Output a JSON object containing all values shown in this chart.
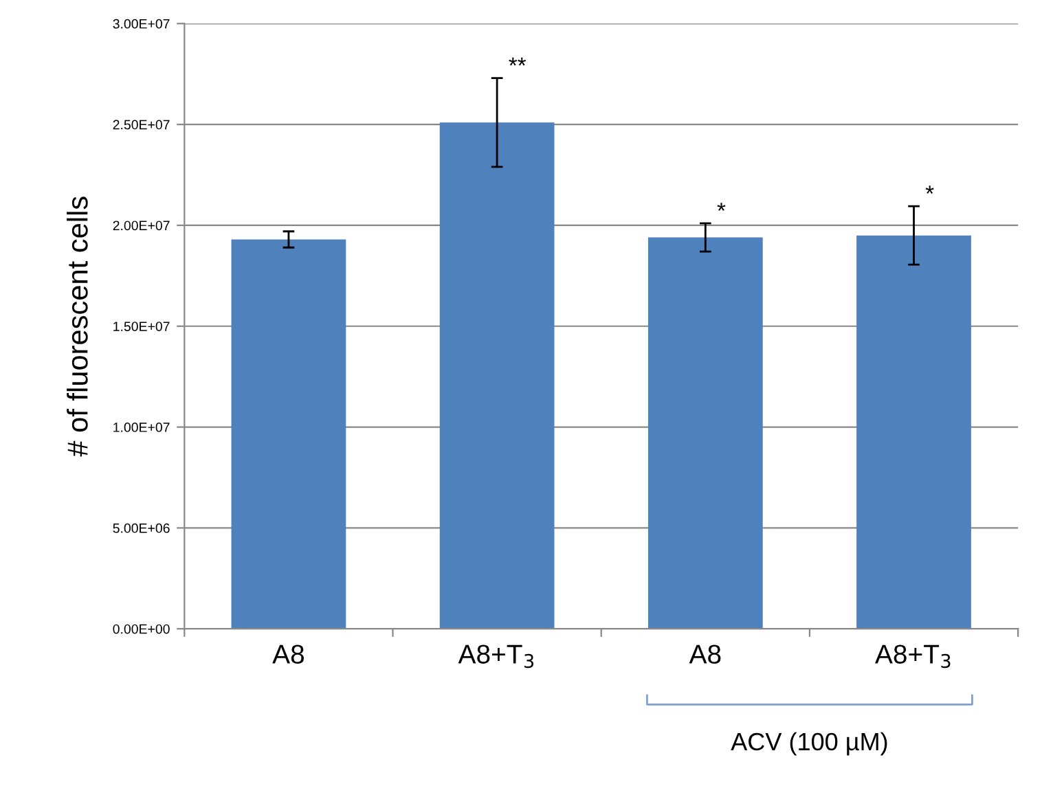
{
  "chart_data": {
    "type": "bar",
    "ylabel": "# of fluorescent cells",
    "categories": [
      "A8",
      "A8+T$_{3}$",
      "A8",
      "A8+T$_{3}$"
    ],
    "values": [
      19300000,
      25100000,
      19400000,
      19500000
    ],
    "errors": [
      400000,
      2200000,
      700000,
      1450000
    ],
    "color": "#4f81bd",
    "ylim": [
      0,
      30000000
    ],
    "yticks": [
      {
        "value": 0,
        "label": "0.00E+00"
      },
      {
        "value": 5000000,
        "label": "5.00E+06"
      },
      {
        "value": 10000000,
        "label": "1.00E+07"
      },
      {
        "value": 15000000,
        "label": "1.50E+07"
      },
      {
        "value": 20000000,
        "label": "2.00E+07"
      },
      {
        "value": 25000000,
        "label": "2.50E+07"
      },
      {
        "value": 30000000,
        "label": "3.00E+07"
      }
    ],
    "grid": "y",
    "annotations": [
      {
        "text": "**",
        "x": "A8+T$_{3}$",
        "y": 27300000
      },
      "*",
      "*",
      "ACV (100 µM)"
    ]
  }
}
